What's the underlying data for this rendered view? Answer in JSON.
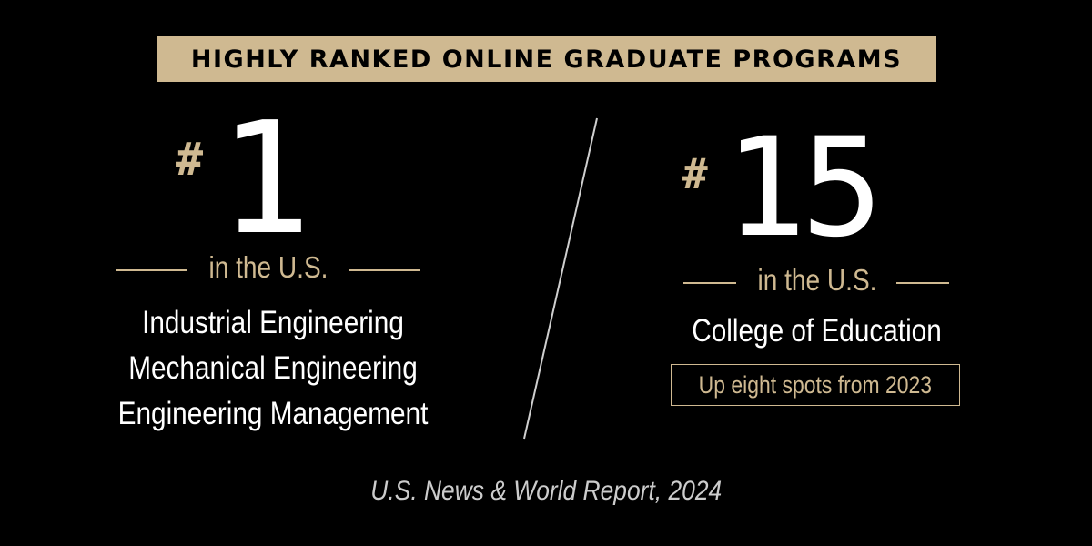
{
  "banner": {
    "title": "HIGHLY RANKED ONLINE GRADUATE PROGRAMS"
  },
  "left": {
    "hash": "#",
    "rank": "1",
    "subtitle": "in the U.S.",
    "programs": [
      "Industrial Engineering",
      "Mechanical Engineering",
      "Engineering Management"
    ]
  },
  "right": {
    "hash": "#",
    "rank": "15",
    "subtitle": "in the U.S.",
    "program": "College of Education",
    "note": "Up eight spots from 2023"
  },
  "source": "U.S. News & World Report, 2024",
  "colors": {
    "background": "#000000",
    "gold": "#cfb991",
    "text": "#ffffff",
    "source_text": "#cccccc"
  }
}
